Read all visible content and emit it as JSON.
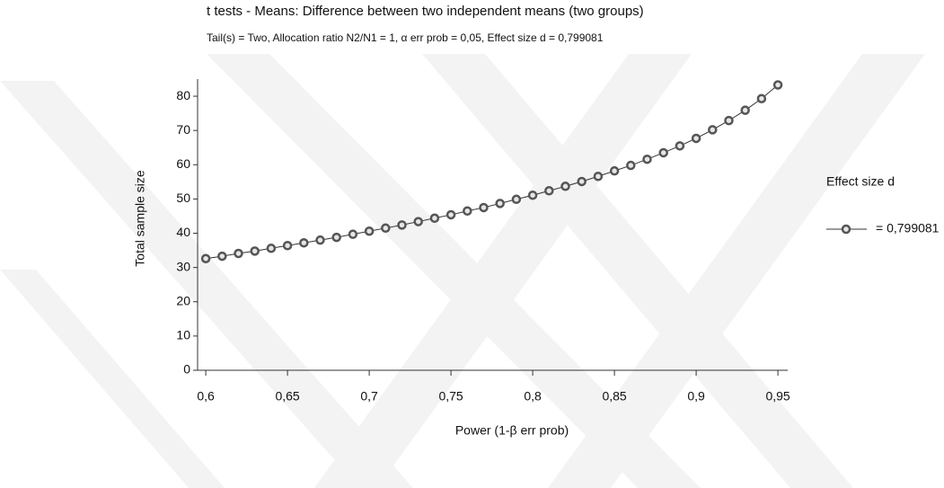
{
  "chart_data": {
    "type": "line",
    "title": "t tests - Means: Difference between two independent means (two groups)",
    "subtitle": "Tail(s) = Two, Allocation ratio N2/N1 = 1, α err prob = 0,05, Effect size d = 0,799081",
    "x_label": "Power (1-β err prob)",
    "y_label": "Total sample size",
    "legend_title": "Effect size d",
    "x": [
      0.6,
      0.61,
      0.62,
      0.63,
      0.64,
      0.65,
      0.66,
      0.67,
      0.68,
      0.69,
      0.7,
      0.71,
      0.72,
      0.73,
      0.74,
      0.75,
      0.76,
      0.77,
      0.78,
      0.79,
      0.8,
      0.81,
      0.82,
      0.83,
      0.84,
      0.85,
      0.86,
      0.87,
      0.88,
      0.89,
      0.9,
      0.91,
      0.92,
      0.93,
      0.94,
      0.95
    ],
    "series": [
      {
        "name": "= 0,799081",
        "color": "#555555",
        "values": [
          32.6,
          33.3,
          34.1,
          34.8,
          35.6,
          36.4,
          37.2,
          38.0,
          38.8,
          39.7,
          40.6,
          41.5,
          42.4,
          43.4,
          44.4,
          45.4,
          46.5,
          47.5,
          48.7,
          49.9,
          51.1,
          52.4,
          53.7,
          55.1,
          56.6,
          58.2,
          59.8,
          61.6,
          63.5,
          65.5,
          67.7,
          70.2,
          72.9,
          75.9,
          79.3,
          83.3
        ]
      }
    ],
    "xlim": [
      0.595,
      0.956
    ],
    "ylim": [
      0,
      85
    ],
    "xticks": [
      {
        "value": 0.6,
        "label": "0,6"
      },
      {
        "value": 0.65,
        "label": "0,65"
      },
      {
        "value": 0.7,
        "label": "0,7"
      },
      {
        "value": 0.75,
        "label": "0,75"
      },
      {
        "value": 0.8,
        "label": "0,8"
      },
      {
        "value": 0.85,
        "label": "0,85"
      },
      {
        "value": 0.9,
        "label": "0,9"
      },
      {
        "value": 0.95,
        "label": "0,95"
      }
    ],
    "yticks": [
      0,
      10,
      20,
      30,
      40,
      50,
      60,
      70,
      80
    ],
    "grid": false
  }
}
